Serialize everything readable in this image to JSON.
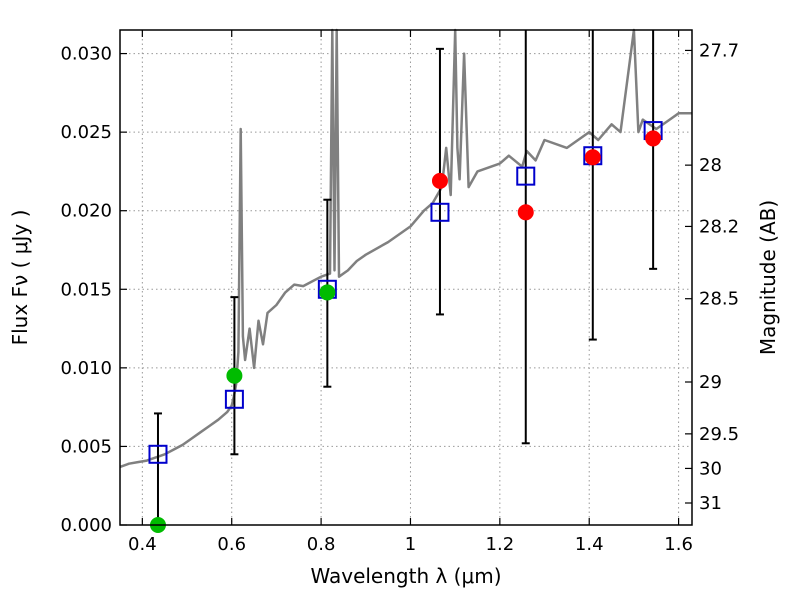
{
  "chart_data": {
    "type": "scatter",
    "xlabel": "Wavelength  λ (μm)",
    "ylabel": "Flux  Fν  ( μJy )",
    "y2label": "Magnitude (AB)",
    "xlim": [
      0.35,
      1.63
    ],
    "ylim": [
      0.0,
      0.0315
    ],
    "grid": true,
    "x_ticks": [
      0.4,
      0.6,
      0.8,
      1.0,
      1.2,
      1.4,
      1.6
    ],
    "x_tick_labels": [
      "0.4",
      "0.6",
      "0.8",
      "1",
      "1.2",
      "1.4",
      "1.6"
    ],
    "y_ticks": [
      0.0,
      0.005,
      0.01,
      0.015,
      0.02,
      0.025,
      0.03
    ],
    "y_tick_labels": [
      "0.000",
      "0.005",
      "0.010",
      "0.015",
      "0.020",
      "0.025",
      "0.030"
    ],
    "mag_ticks": [
      {
        "label": "27.7",
        "flux": 0.0302
      },
      {
        "label": "28",
        "flux": 0.0229
      },
      {
        "label": "28.2",
        "flux": 0.019
      },
      {
        "label": "28.5",
        "flux": 0.0144
      },
      {
        "label": "29",
        "flux": 0.0091
      },
      {
        "label": "29.5",
        "flux": 0.0058
      },
      {
        "label": "30",
        "flux": 0.0036
      },
      {
        "label": "31",
        "flux": 0.0014
      }
    ],
    "colors": {
      "model": "#808080",
      "model_photometry": "#0000cc",
      "observed_detected": "#ff0000",
      "observed_optical": "#00bb00",
      "errorbar": "#000000",
      "grid": "#999999"
    },
    "series": [
      {
        "type": "line",
        "x": [
          0.35,
          0.37,
          0.39,
          0.41,
          0.43,
          0.45,
          0.47,
          0.49,
          0.51,
          0.53,
          0.55,
          0.57,
          0.59,
          0.6,
          0.605,
          0.61,
          0.615,
          0.62,
          0.625,
          0.63,
          0.64,
          0.65,
          0.66,
          0.67,
          0.68,
          0.7,
          0.72,
          0.74,
          0.76,
          0.78,
          0.8,
          0.82,
          0.825,
          0.83,
          0.835,
          0.84,
          0.86,
          0.88,
          0.9,
          0.95,
          1.0,
          1.03,
          1.05,
          1.07,
          1.08,
          1.09,
          1.1,
          1.105,
          1.11,
          1.12,
          1.13,
          1.15,
          1.2,
          1.22,
          1.25,
          1.26,
          1.28,
          1.3,
          1.35,
          1.4,
          1.42,
          1.45,
          1.47,
          1.5,
          1.51,
          1.52,
          1.55,
          1.58,
          1.6,
          1.63
        ],
        "y": [
          0.0037,
          0.0039,
          0.004,
          0.0041,
          0.0043,
          0.0045,
          0.0048,
          0.0051,
          0.0055,
          0.0059,
          0.0063,
          0.0067,
          0.0072,
          0.0076,
          0.0082,
          0.009,
          0.011,
          0.0252,
          0.012,
          0.0105,
          0.0125,
          0.01,
          0.013,
          0.0115,
          0.0135,
          0.014,
          0.0148,
          0.0153,
          0.0152,
          0.0155,
          0.0158,
          0.016,
          0.0315,
          0.0162,
          0.0315,
          0.0158,
          0.0162,
          0.0168,
          0.0172,
          0.018,
          0.019,
          0.02,
          0.0205,
          0.0215,
          0.024,
          0.021,
          0.0315,
          0.024,
          0.022,
          0.03,
          0.0215,
          0.0225,
          0.023,
          0.0235,
          0.0228,
          0.0238,
          0.0232,
          0.0245,
          0.024,
          0.025,
          0.0245,
          0.0255,
          0.025,
          0.0315,
          0.025,
          0.0258,
          0.0252,
          0.0258,
          0.0262,
          0.0262
        ]
      },
      {
        "type": "scatter",
        "marker": "square",
        "x": [
          0.435,
          0.606,
          0.814,
          1.066,
          1.258,
          1.408,
          1.543
        ],
        "y": [
          0.0045,
          0.008,
          0.015,
          0.0199,
          0.0222,
          0.0235,
          0.0251
        ]
      },
      {
        "type": "scatter",
        "marker": "circle",
        "color_key": "observed_optical",
        "x": [
          0.435,
          0.606,
          0.814
        ],
        "y": [
          0.0,
          0.0095,
          0.0148
        ]
      },
      {
        "type": "scatter",
        "marker": "circle",
        "color_key": "observed_detected",
        "x": [
          1.066,
          1.258,
          1.408,
          1.543
        ],
        "y": [
          0.0219,
          0.0199,
          0.0234,
          0.0246
        ]
      },
      {
        "type": "errorbar",
        "x": [
          0.435,
          0.606,
          0.814,
          1.066,
          1.258,
          1.408,
          1.543
        ],
        "y_low": [
          0.0,
          0.0045,
          0.0088,
          0.0134,
          0.0052,
          0.0118,
          0.0163
        ],
        "y_high": [
          0.0071,
          0.0145,
          0.0207,
          0.0303,
          0.0315,
          0.0315,
          0.0315
        ]
      }
    ]
  }
}
